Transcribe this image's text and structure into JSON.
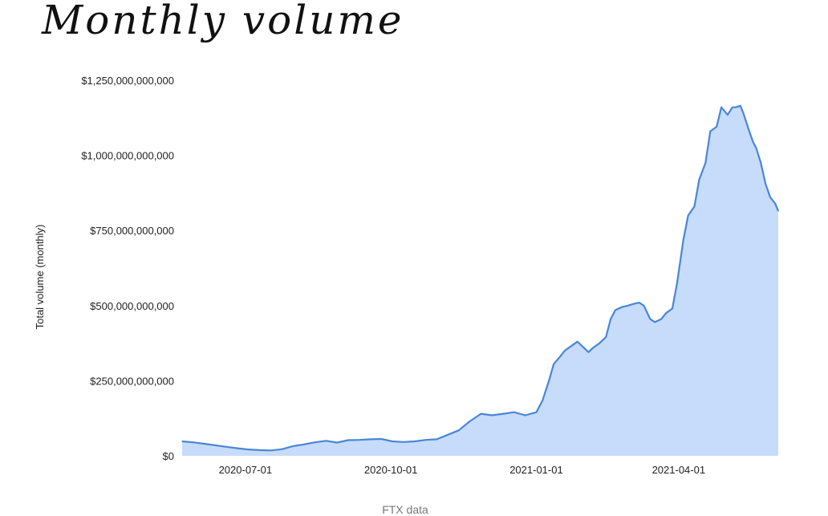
{
  "chart_data": {
    "type": "area",
    "title": "Monthly volume",
    "ylabel": "Total volume (monthly)",
    "xlabel": "",
    "caption": "FTX data",
    "x_tick_labels": [
      "2020-07-01",
      "2020-10-01",
      "2021-01-01",
      "2021-04-01"
    ],
    "y_tick_labels": [
      "$0",
      "$250,000,000,000",
      "$500,000,000,000",
      "$750,000,000,000",
      "$1,000,000,000,000",
      "$1,250,000,000,000"
    ],
    "ylim": [
      0,
      1250000000000
    ],
    "xlim": [
      "2020-05-22",
      "2021-06-03"
    ],
    "grid": false,
    "legend": "none",
    "line_color": "#4a86d8",
    "fill_color": "#c6dcfa",
    "series": [
      {
        "x": [
          "2020-05-22",
          "2020-05-29",
          "2020-06-05",
          "2020-06-12",
          "2020-06-19",
          "2020-06-26",
          "2020-07-03",
          "2020-07-10",
          "2020-07-17",
          "2020-07-24",
          "2020-07-31",
          "2020-08-07",
          "2020-08-14",
          "2020-08-21",
          "2020-08-28",
          "2020-09-04",
          "2020-09-11",
          "2020-09-18",
          "2020-09-25",
          "2020-10-02",
          "2020-10-09",
          "2020-10-16",
          "2020-10-23",
          "2020-10-30",
          "2020-11-06",
          "2020-11-13",
          "2020-11-20",
          "2020-11-27",
          "2020-12-04",
          "2020-12-11",
          "2020-12-18",
          "2020-12-25",
          "2021-01-01",
          "2021-01-05",
          "2021-01-09",
          "2021-01-12",
          "2021-01-16",
          "2021-01-19",
          "2021-01-23",
          "2021-01-27",
          "2021-01-30",
          "2021-02-03",
          "2021-02-06",
          "2021-02-10",
          "2021-02-14",
          "2021-02-17",
          "2021-02-20",
          "2021-02-24",
          "2021-02-28",
          "2021-03-03",
          "2021-03-07",
          "2021-03-10",
          "2021-03-14",
          "2021-03-17",
          "2021-03-21",
          "2021-03-24",
          "2021-03-28",
          "2021-03-31",
          "2021-04-04",
          "2021-04-07",
          "2021-04-11",
          "2021-04-14",
          "2021-04-18",
          "2021-04-21",
          "2021-04-25",
          "2021-04-28",
          "2021-05-02",
          "2021-05-05",
          "2021-05-07",
          "2021-05-10",
          "2021-05-12",
          "2021-05-15",
          "2021-05-18",
          "2021-05-20",
          "2021-05-23",
          "2021-05-26",
          "2021-05-29",
          "2021-06-01",
          "2021-06-03"
        ],
        "y": [
          48000000000,
          45000000000,
          40000000000,
          35000000000,
          30000000000,
          25000000000,
          21000000000,
          19000000000,
          18000000000,
          22000000000,
          32000000000,
          38000000000,
          45000000000,
          50000000000,
          44000000000,
          52000000000,
          53000000000,
          55000000000,
          56000000000,
          48000000000,
          46000000000,
          48000000000,
          53000000000,
          55000000000,
          70000000000,
          85000000000,
          115000000000,
          140000000000,
          135000000000,
          140000000000,
          145000000000,
          135000000000,
          145000000000,
          185000000000,
          250000000000,
          305000000000,
          330000000000,
          350000000000,
          365000000000,
          380000000000,
          365000000000,
          345000000000,
          360000000000,
          375000000000,
          395000000000,
          455000000000,
          485000000000,
          495000000000,
          500000000000,
          505000000000,
          510000000000,
          500000000000,
          455000000000,
          445000000000,
          455000000000,
          475000000000,
          490000000000,
          575000000000,
          720000000000,
          800000000000,
          830000000000,
          920000000000,
          975000000000,
          1080000000000,
          1095000000000,
          1160000000000,
          1135000000000,
          1160000000000,
          1160000000000,
          1165000000000,
          1140000000000,
          1090000000000,
          1045000000000,
          1025000000000,
          975000000000,
          905000000000,
          860000000000,
          840000000000,
          815000000000
        ]
      }
    ]
  }
}
